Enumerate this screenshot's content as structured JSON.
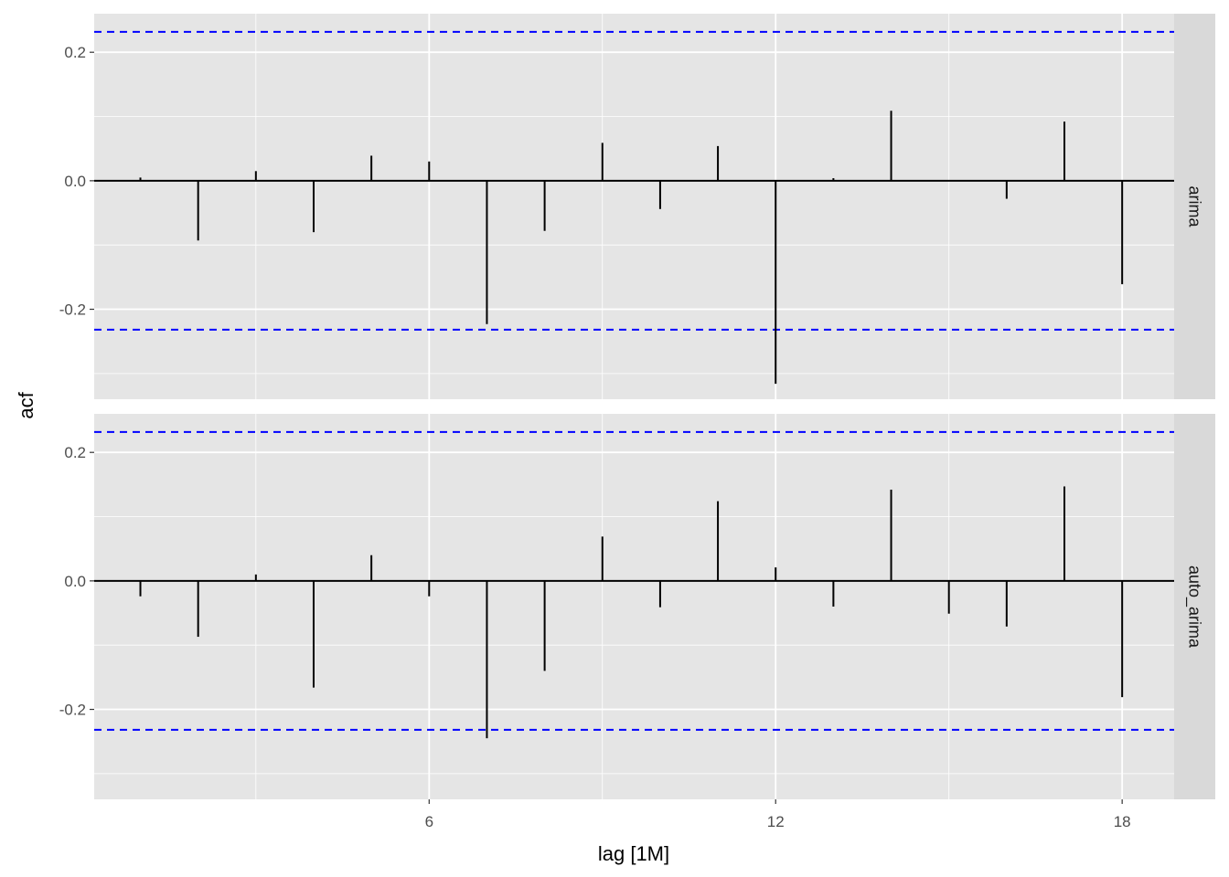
{
  "chart_data": {
    "type": "bar",
    "layout": "faceted, two panels stacked vertically with strip labels on the right",
    "xlabel": "lag [1M]",
    "ylabel": "acf",
    "xlim": [
      0.2,
      18.9
    ],
    "x_ticks": [
      6,
      12,
      18
    ],
    "ylim": [
      -0.34,
      0.26
    ],
    "y_ticks": [
      -0.2,
      0.0,
      0.2
    ],
    "y_tick_labels": [
      "-0.2",
      "0.0",
      "0.2"
    ],
    "grid": true,
    "confidence_bounds": [
      -0.2318,
      0.2318
    ],
    "colors": {
      "panel_background": "#e5e5e5",
      "grid": "#ffffff",
      "strip_background": "#d9d9d9",
      "spikes": "#000000",
      "bounds": "#0000ff"
    },
    "lags": [
      1,
      2,
      3,
      4,
      5,
      6,
      7,
      8,
      9,
      10,
      11,
      12,
      13,
      14,
      15,
      16,
      17,
      18
    ],
    "panels": [
      {
        "label": "arima",
        "values": [
          0.005,
          -0.093,
          0.015,
          -0.08,
          0.039,
          0.03,
          -0.223,
          -0.078,
          0.059,
          -0.044,
          0.054,
          -0.316,
          0.004,
          0.109,
          0.0,
          -0.028,
          0.092,
          -0.161
        ]
      },
      {
        "label": "auto_arima",
        "values": [
          -0.024,
          -0.087,
          0.01,
          -0.166,
          0.04,
          -0.024,
          -0.245,
          -0.14,
          0.069,
          -0.041,
          0.124,
          0.021,
          -0.04,
          0.142,
          -0.051,
          -0.071,
          0.147,
          -0.181
        ]
      }
    ]
  }
}
